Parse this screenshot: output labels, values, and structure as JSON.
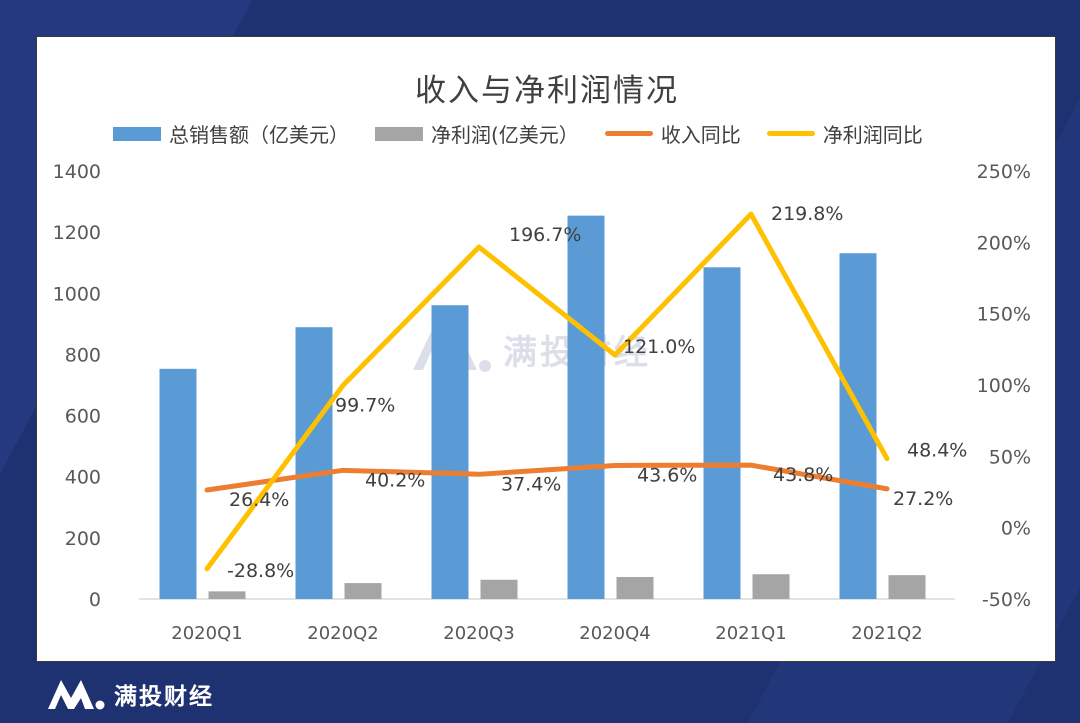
{
  "brand": {
    "name": "满投财经",
    "watermark": "满投财经"
  },
  "colors": {
    "background": "#1e3170",
    "sales": "#5b9bd5",
    "profit": "#a5a5a5",
    "revenue_yoy": "#ed7d31",
    "profit_yoy": "#ffc000",
    "text": "#595959"
  },
  "chart_data": {
    "type": "bar+line",
    "title": "收入与净利润情况",
    "categories": [
      "2020Q1",
      "2020Q2",
      "2020Q3",
      "2020Q4",
      "2021Q1",
      "2021Q2"
    ],
    "left_axis": {
      "ylim": [
        0,
        1400
      ],
      "ticks": [
        "0",
        "200",
        "400",
        "600",
        "800",
        "1000",
        "1200",
        "1400"
      ]
    },
    "right_axis": {
      "ylim": [
        -50,
        250
      ],
      "ticks": [
        "-50%",
        "0%",
        "50%",
        "100%",
        "150%",
        "200%",
        "250%"
      ]
    },
    "series": [
      {
        "name": "总销售额（亿美元）",
        "type": "bar",
        "axis": "left",
        "values": [
          753,
          889,
          961,
          1254,
          1085,
          1131
        ]
      },
      {
        "name": "净利润(亿美元）",
        "type": "bar",
        "axis": "left",
        "values": [
          25,
          52,
          63,
          72,
          81,
          78
        ]
      },
      {
        "name": "收入同比",
        "type": "line",
        "axis": "right",
        "values": [
          26.4,
          40.2,
          37.4,
          43.6,
          43.8,
          27.2
        ],
        "labels": [
          "26.4%",
          "40.2%",
          "37.4%",
          "43.6%",
          "43.8%",
          "27.2%"
        ]
      },
      {
        "name": "净利润同比",
        "type": "line",
        "axis": "right",
        "values": [
          -28.8,
          99.7,
          196.7,
          121.0,
          219.8,
          48.4
        ],
        "labels": [
          "-28.8%",
          "99.7%",
          "196.7%",
          "121.0%",
          "219.8%",
          "48.4%"
        ]
      }
    ]
  }
}
